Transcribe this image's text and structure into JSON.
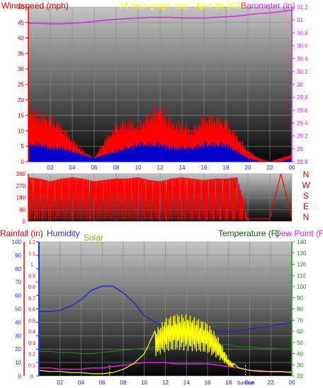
{
  "chart_data": [
    {
      "type": "line",
      "header_title": "24 hour graph day - April 16 2025",
      "left_label": "Windspeed (mph)",
      "right_label": "Barometer (in)",
      "x_ticks": [
        "02",
        "04",
        "06",
        "08",
        "10",
        "12",
        "14",
        "16",
        "18",
        "20",
        "22",
        "00"
      ],
      "left_ticks": [
        "0",
        "5",
        "10",
        "15",
        "20",
        "25",
        "30",
        "35",
        "40",
        "45",
        "50"
      ],
      "right_ticks": [
        "28.8",
        "29",
        "29.2",
        "29.4",
        "29.6",
        "29.8",
        "30",
        "30.2",
        "30.4",
        "30.6",
        "30.8",
        "31",
        "31.2"
      ],
      "ylim_left": [
        0,
        50
      ],
      "ylim_right": [
        28.8,
        31.2
      ],
      "x_hours": [
        0,
        1,
        2,
        3,
        4,
        5,
        6,
        7,
        8,
        9,
        10,
        11,
        12,
        13,
        14,
        15,
        16,
        17,
        18,
        19,
        20,
        21,
        22,
        23,
        24
      ],
      "series": [
        {
          "role": "barometer",
          "color": "#e020e0",
          "values": [
            30.95,
            30.95,
            30.94,
            30.94,
            30.95,
            30.96,
            30.98,
            31.0,
            31.01,
            31.02,
            31.03,
            31.04,
            31.04,
            31.04,
            31.03,
            31.03,
            31.03,
            31.04,
            31.05,
            31.06,
            31.08,
            31.1,
            31.11,
            31.13,
            31.15
          ]
        },
        {
          "role": "wind_gust",
          "color": "#ff0000",
          "values": [
            15,
            13,
            12,
            10,
            6,
            3,
            1,
            6,
            10,
            11,
            10,
            13,
            15,
            11,
            10,
            9,
            12,
            12,
            11,
            7,
            3,
            1,
            0,
            1,
            2
          ]
        },
        {
          "role": "wind_speed",
          "color": "#0000cc",
          "values": [
            5,
            5,
            4,
            4,
            3,
            2,
            1,
            2,
            3,
            4,
            5,
            5,
            5,
            4,
            4,
            4,
            5,
            5,
            5,
            3,
            1,
            0,
            0,
            0,
            1
          ]
        },
        {
          "role": "wind_avg",
          "color": "#008000",
          "values": [
            4,
            4,
            3,
            3,
            2,
            1,
            1,
            2,
            2,
            3,
            3,
            4,
            4,
            3,
            3,
            3,
            4,
            4,
            4,
            2,
            1,
            0,
            0,
            0,
            0
          ]
        }
      ]
    },
    {
      "type": "line",
      "right_letters": [
        "N",
        "W",
        "S",
        "E",
        "N"
      ],
      "left_ticks": [
        "0",
        "90",
        "180",
        "270",
        "360"
      ],
      "ylim": [
        0,
        360
      ],
      "x_hours": [
        0,
        1,
        2,
        3,
        4,
        5,
        6,
        7,
        8,
        9,
        10,
        11,
        12,
        13,
        14,
        15,
        16,
        17,
        18,
        19,
        20,
        21,
        22,
        23,
        24
      ],
      "series": [
        {
          "role": "wind_direction",
          "color": "#ff0000",
          "values": [
            330,
            320,
            300,
            320,
            330,
            320,
            300,
            310,
            320,
            320,
            330,
            310,
            300,
            320,
            330,
            320,
            310,
            320,
            320,
            330,
            20,
            20,
            20,
            360,
            20
          ]
        }
      ]
    },
    {
      "type": "line",
      "left_labels": [
        "Rainfall (in)",
        "Humidity",
        "Solar"
      ],
      "right_labels": [
        "Temperature (F)",
        "Dew Point (F)"
      ],
      "x_ticks": [
        "02",
        "04",
        "06",
        "08",
        "10",
        "12",
        "14",
        "16",
        "18",
        "Sun",
        "22",
        "00"
      ],
      "marker_text": "Sunrise",
      "rain_ticks": [
        "0",
        "0.1",
        "0.2",
        "0.3",
        "0.4",
        "0.5",
        "0.6",
        "0.7",
        "0.8",
        "0.9",
        "1",
        "1.1",
        "1.2"
      ],
      "humidity_ticks": [
        "0",
        "10",
        "20",
        "30",
        "40",
        "50",
        "60",
        "70",
        "80",
        "90",
        "100"
      ],
      "temp_ticks": [
        "20",
        "30",
        "40",
        "50",
        "60",
        "70",
        "80",
        "90",
        "100",
        "110",
        "120",
        "130",
        "140"
      ],
      "ylim_left": [
        0,
        100
      ],
      "ylim_right": [
        20,
        140
      ],
      "x_hours": [
        0,
        1,
        2,
        3,
        4,
        5,
        6,
        7,
        8,
        9,
        10,
        11,
        12,
        13,
        14,
        15,
        16,
        17,
        18,
        19,
        20,
        21,
        22,
        23,
        24
      ],
      "series": [
        {
          "role": "humidity",
          "color": "#2030c0",
          "values": [
            48,
            48,
            49,
            52,
            57,
            64,
            67,
            67,
            62,
            55,
            45,
            40,
            37,
            36,
            36,
            34,
            32,
            33,
            33,
            34,
            35,
            36,
            37,
            39,
            40
          ]
        },
        {
          "role": "temperature",
          "color": "#ffff00",
          "axis": "right",
          "values": [
            25,
            24,
            24,
            23,
            23,
            22,
            22,
            23,
            26,
            31,
            40,
            60,
            72,
            76,
            75,
            72,
            68,
            55,
            35,
            27,
            25,
            24,
            24,
            24,
            23
          ]
        },
        {
          "role": "dew_point",
          "color": "#208020",
          "axis": "right",
          "values": [
            42,
            42,
            41,
            41,
            40,
            40,
            41,
            42,
            43,
            44,
            45,
            46,
            46,
            47,
            47,
            47,
            48,
            48,
            48,
            46,
            46,
            45,
            45,
            44,
            44
          ]
        },
        {
          "role": "rainfall_solar_base",
          "color": "#e020e0",
          "values": [
            6,
            6,
            5,
            5,
            5,
            6,
            6,
            7,
            8,
            9,
            10,
            10,
            10,
            9,
            9,
            9,
            9,
            8,
            7,
            6,
            4,
            4,
            3,
            3,
            3
          ]
        }
      ],
      "sunrise_hour": 6.7,
      "sunset_hour": 19.6
    }
  ]
}
